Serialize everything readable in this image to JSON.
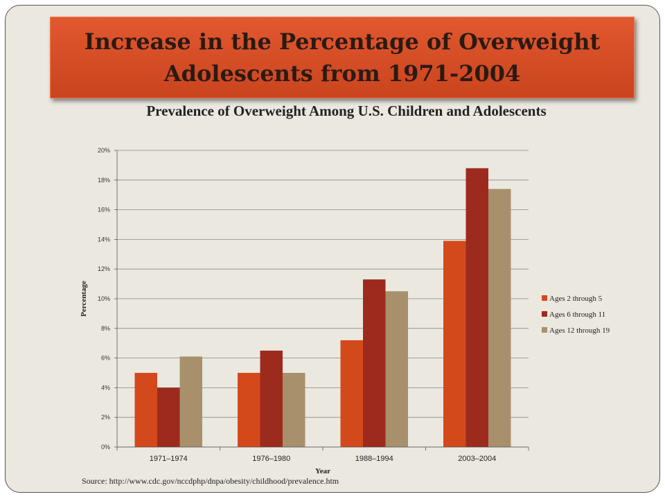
{
  "slide": {
    "title": "Increase in the Percentage of Overweight Adolescents from 1971-2004",
    "source": "Source: http://www.cdc.gov/nccdphp/dnpa/obesity/childhood/prevalence.htm"
  },
  "chart_data": {
    "type": "bar",
    "title": "Prevalence of Overweight Among U.S. Children and Adolescents",
    "xlabel": "Year",
    "ylabel": "Percentage",
    "categories": [
      "1971–1974",
      "1976–1980",
      "1988–1994",
      "2003–2004"
    ],
    "series": [
      {
        "name": "Ages 2 through 5",
        "values": [
          5,
          5,
          7.2,
          13.9
        ],
        "color": "#d4491c"
      },
      {
        "name": "Ages 6 through 11",
        "values": [
          4,
          6.5,
          11.3,
          18.8
        ],
        "color": "#9c2b1e"
      },
      {
        "name": "Ages 12 through 19",
        "values": [
          6.1,
          5,
          10.5,
          17.4
        ],
        "color": "#a8906c"
      }
    ],
    "ylim": [
      0,
      20
    ],
    "yticks": [
      0,
      2,
      4,
      6,
      8,
      10,
      12,
      14,
      16,
      18,
      20
    ],
    "ytick_suffix": "%",
    "grid": true,
    "legend": "right"
  }
}
